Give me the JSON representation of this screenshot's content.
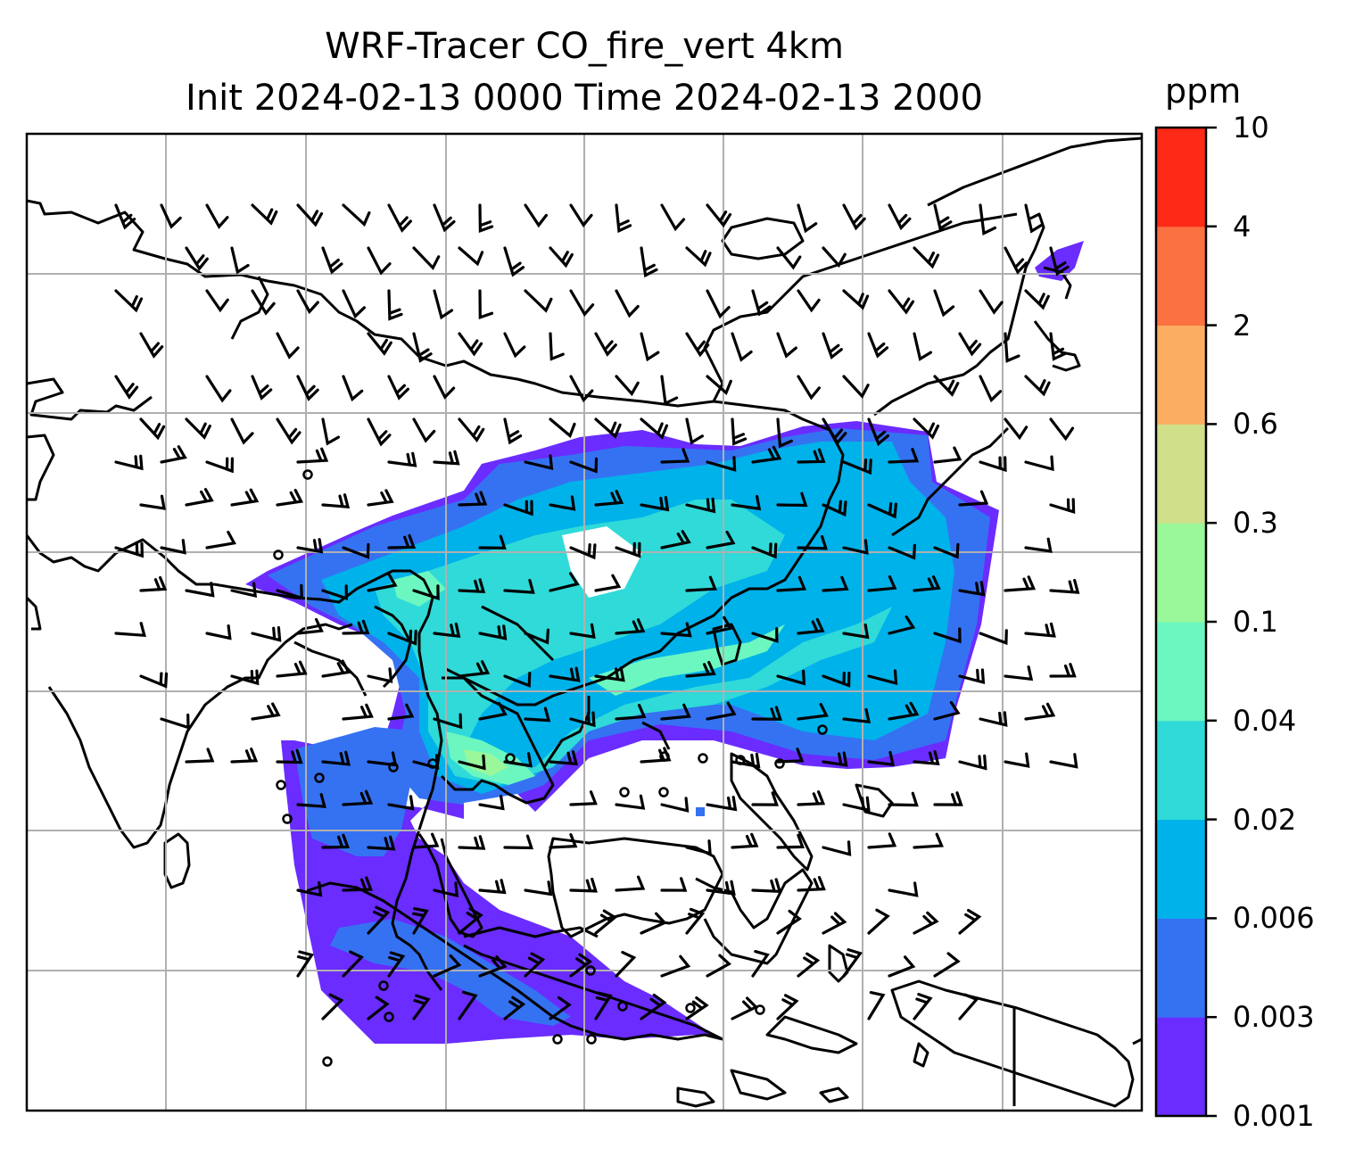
{
  "title": {
    "line1": "WRF-Tracer CO_fire_vert 4km",
    "line2": "Init 2024-02-13 0000 Time 2024-02-13 2000"
  },
  "colorbar": {
    "unit": "ppm",
    "levels": [
      "0.001",
      "0.003",
      "0.006",
      "0.02",
      "0.04",
      "0.1",
      "0.3",
      "0.6",
      "2",
      "4",
      "10"
    ],
    "colors": [
      "#6a2cff",
      "#3572f2",
      "#00b2ea",
      "#2fdad8",
      "#6cf7c0",
      "#9af79a",
      "#cfdf8a",
      "#fbae62",
      "#fb7141",
      "#fc2a16"
    ]
  },
  "map": {
    "gridline_color": "#b0b0b0",
    "coastline_color": "#000000",
    "wind_barb_color": "#000000",
    "background": "#ffffff"
  }
}
